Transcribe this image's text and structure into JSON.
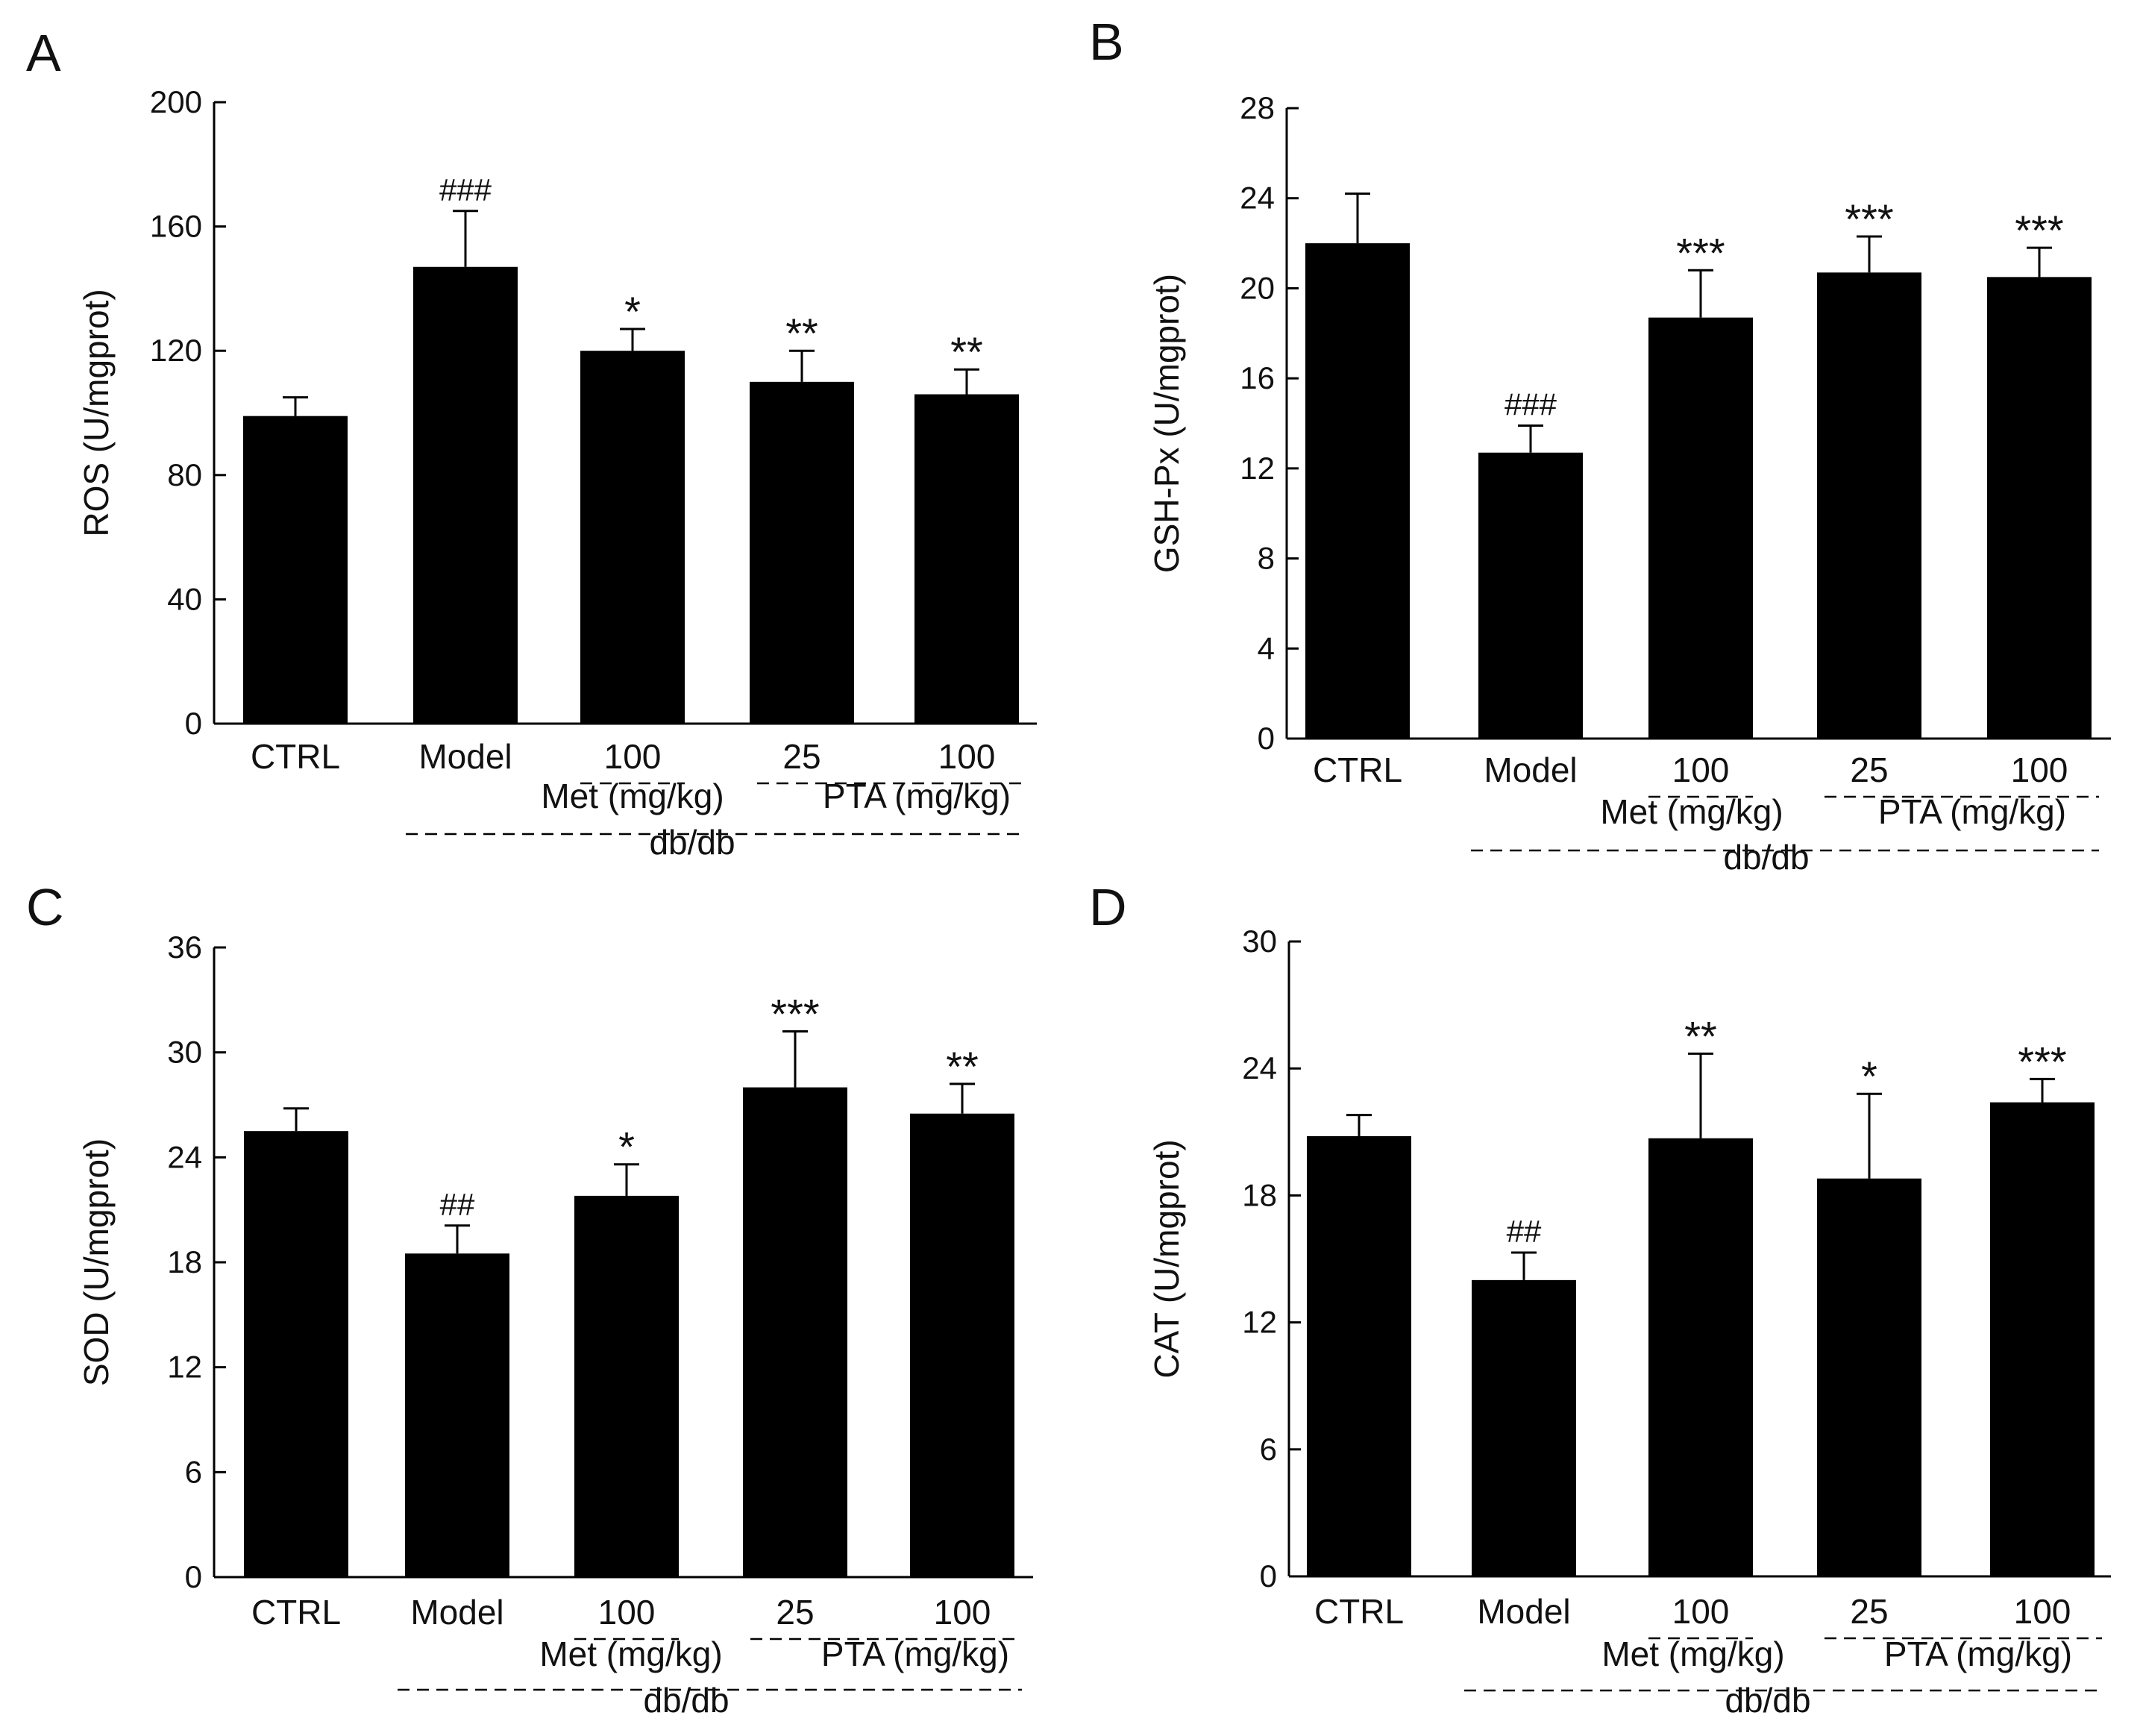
{
  "colors": {
    "bar": "#000000",
    "text": "#111111",
    "background": "#ffffff"
  },
  "chart_data": [
    {
      "panel": "A",
      "type": "bar",
      "ylabel": "ROS (U/mgprot)",
      "ylim": [
        0,
        200
      ],
      "yticks": [
        0,
        40,
        80,
        120,
        160,
        200
      ],
      "categories": [
        "CTRL",
        "Model",
        "100",
        "25",
        "100"
      ],
      "values": [
        99,
        147,
        120,
        110,
        106
      ],
      "errors": [
        6,
        18,
        7,
        10,
        8
      ],
      "significance": [
        "",
        "###",
        "*",
        "**",
        "**"
      ],
      "group_labels": {
        "met": "Met (mg/kg)",
        "pta": "PTA (mg/kg)",
        "dbdb": "db/db"
      }
    },
    {
      "panel": "B",
      "type": "bar",
      "ylabel": "GSH-Px (U/mgprot)",
      "ylim": [
        0,
        28
      ],
      "yticks": [
        0,
        4,
        8,
        12,
        16,
        20,
        24,
        28
      ],
      "categories": [
        "CTRL",
        "Model",
        "100",
        "25",
        "100"
      ],
      "values": [
        22,
        12.7,
        18.7,
        20.7,
        20.5
      ],
      "errors": [
        2.2,
        1.2,
        2.1,
        1.6,
        1.3
      ],
      "significance": [
        "",
        "###",
        "***",
        "***",
        "***"
      ],
      "group_labels": {
        "met": "Met (mg/kg)",
        "pta": "PTA (mg/kg)",
        "dbdb": "db/db"
      }
    },
    {
      "panel": "C",
      "type": "bar",
      "ylabel": "SOD (U/mgprot)",
      "ylim": [
        0,
        36
      ],
      "yticks": [
        0,
        6,
        12,
        18,
        24,
        30,
        36
      ],
      "categories": [
        "CTRL",
        "Model",
        "100",
        "25",
        "100"
      ],
      "values": [
        25.5,
        18.5,
        21.8,
        28,
        26.5
      ],
      "errors": [
        1.3,
        1.6,
        1.8,
        3.2,
        1.7
      ],
      "significance": [
        "",
        "##",
        "*",
        "***",
        "**"
      ],
      "group_labels": {
        "met": "Met (mg/kg)",
        "pta": "PTA (mg/kg)",
        "dbdb": "db/db"
      }
    },
    {
      "panel": "D",
      "type": "bar",
      "ylabel": "CAT (U/mgprot)",
      "ylim": [
        0,
        30
      ],
      "yticks": [
        0,
        6,
        12,
        18,
        24,
        30
      ],
      "categories": [
        "CTRL",
        "Model",
        "100",
        "25",
        "100"
      ],
      "values": [
        20.8,
        14,
        20.7,
        18.8,
        22.4
      ],
      "errors": [
        1.0,
        1.3,
        4.0,
        4.0,
        1.1
      ],
      "significance": [
        "",
        "##",
        "**",
        "*",
        "***"
      ],
      "group_labels": {
        "met": "Met (mg/kg)",
        "pta": "PTA (mg/kg)",
        "dbdb": "db/db"
      }
    }
  ]
}
